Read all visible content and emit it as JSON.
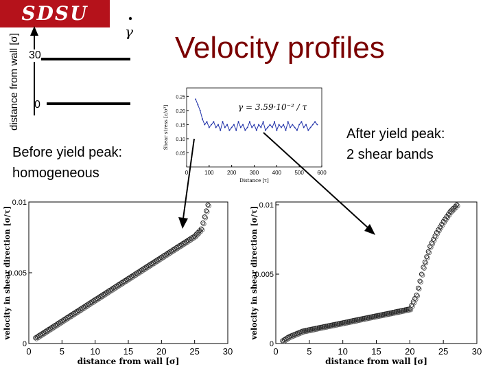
{
  "header": {
    "logo_text": "SDSU",
    "slide_title": "Velocity profiles"
  },
  "schematic": {
    "ylabel": "distance from wall [σ]",
    "label_top": "30",
    "label_bottom": "0",
    "shear_rate_symbol": "γ"
  },
  "annotations": {
    "left_line1": "Before yield peak:",
    "left_line2": "homogeneous",
    "right_line1": "After yield peak:",
    "right_line2": "2 shear bands"
  },
  "chart_data": [
    {
      "id": "stress-inset",
      "type": "line",
      "annotation": "γ = 3.59·10⁻² / τ",
      "ylabel": "Shear stress [ε/σ³]",
      "xlabel": "Distance [τ]",
      "xlim": [
        0,
        600
      ],
      "ylim": [
        0,
        0.28
      ],
      "xticks": [
        0,
        100,
        200,
        300,
        400,
        500,
        600
      ],
      "yticks": [
        0.05,
        0.1,
        0.15,
        0.2,
        0.25
      ],
      "x": [
        40,
        50,
        60,
        70,
        80,
        90,
        100,
        110,
        120,
        130,
        140,
        150,
        160,
        170,
        180,
        190,
        200,
        210,
        220,
        230,
        240,
        250,
        260,
        270,
        280,
        290,
        300,
        310,
        320,
        330,
        340,
        350,
        360,
        370,
        380,
        390,
        400,
        410,
        420,
        430,
        440,
        450,
        460,
        470,
        480,
        490,
        500,
        510,
        520,
        530,
        540,
        550,
        560,
        570,
        580
      ],
      "values": [
        0.24,
        0.22,
        0.2,
        0.17,
        0.15,
        0.16,
        0.14,
        0.15,
        0.16,
        0.14,
        0.15,
        0.13,
        0.16,
        0.14,
        0.15,
        0.13,
        0.14,
        0.15,
        0.13,
        0.16,
        0.14,
        0.15,
        0.13,
        0.14,
        0.16,
        0.14,
        0.15,
        0.13,
        0.15,
        0.14,
        0.16,
        0.13,
        0.14,
        0.15,
        0.14,
        0.16,
        0.13,
        0.15,
        0.14,
        0.15,
        0.13,
        0.16,
        0.14,
        0.15,
        0.14,
        0.13,
        0.15,
        0.16,
        0.14,
        0.15,
        0.13,
        0.14,
        0.15,
        0.16,
        0.15
      ],
      "color": "#2233aa"
    },
    {
      "id": "profile-before",
      "type": "scatter",
      "xlabel": "distance from wall [σ]",
      "ylabel": "velocity in shear direction [σ/τ]",
      "xlim": [
        0,
        30
      ],
      "ylim": [
        0,
        0.01
      ],
      "xticks": [
        0,
        5,
        10,
        15,
        20,
        25,
        30
      ],
      "ytick_labels": [
        "0",
        "0.005",
        "0.01"
      ],
      "yticks": [
        0,
        0.005,
        0.01
      ],
      "x": [
        1,
        2,
        3,
        4,
        5,
        6,
        7,
        8,
        9,
        10,
        11,
        12,
        13,
        14,
        15,
        16,
        17,
        18,
        19,
        20,
        21,
        22,
        23,
        24,
        25,
        26,
        27
      ],
      "values": [
        0.0004,
        0.0007,
        0.001,
        0.0013,
        0.0016,
        0.0019,
        0.0022,
        0.0025,
        0.0028,
        0.0031,
        0.0034,
        0.0037,
        0.004,
        0.0043,
        0.0046,
        0.0049,
        0.0052,
        0.0055,
        0.0058,
        0.0061,
        0.0064,
        0.0067,
        0.007,
        0.0073,
        0.0076,
        0.0081,
        0.0098
      ]
    },
    {
      "id": "profile-after",
      "type": "scatter",
      "xlabel": "distance from wall [σ]",
      "ylabel": "velocity in shear direction [σ/τ]",
      "xlim": [
        0,
        30
      ],
      "ylim": [
        0,
        0.0102
      ],
      "xticks": [
        0,
        5,
        10,
        15,
        20,
        25,
        30
      ],
      "ytick_labels": [
        "0",
        "0.005",
        "0.01"
      ],
      "yticks": [
        0,
        0.005,
        0.01
      ],
      "x": [
        1,
        2,
        3,
        4,
        5,
        6,
        7,
        8,
        9,
        10,
        11,
        12,
        13,
        14,
        15,
        16,
        17,
        18,
        19,
        20,
        21,
        22,
        23,
        24,
        25,
        26,
        27
      ],
      "values": [
        0.0002,
        0.0005,
        0.0007,
        0.0009,
        0.001,
        0.0011,
        0.0012,
        0.0013,
        0.0014,
        0.0015,
        0.0016,
        0.0017,
        0.0018,
        0.0019,
        0.002,
        0.0021,
        0.0022,
        0.0023,
        0.0024,
        0.0025,
        0.0035,
        0.0055,
        0.007,
        0.008,
        0.0088,
        0.0095,
        0.01
      ]
    }
  ]
}
